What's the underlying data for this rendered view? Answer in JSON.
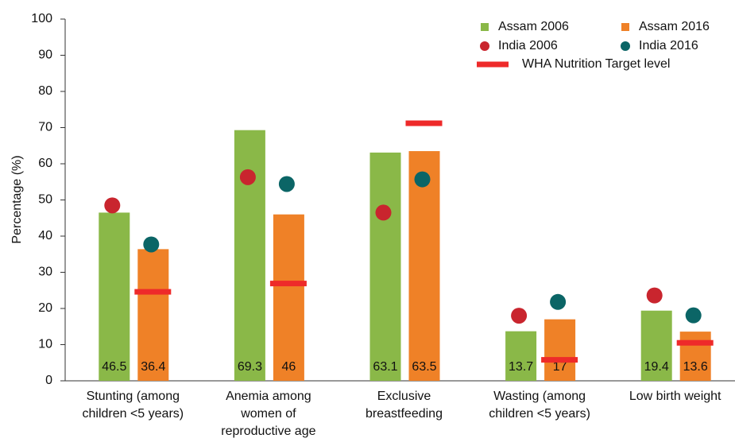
{
  "chart_data": {
    "type": "bar",
    "y_label": "Percentage (%)",
    "categories": [
      "Stunting (among children <5 years)",
      "Anemia among women of reproductive age",
      "Exclusive breastfeeding",
      "Wasting (among children <5 years)",
      "Low birth weight"
    ],
    "series": [
      {
        "name": "Assam 2006",
        "type": "bar",
        "color": "#8ab848",
        "values": [
          46.5,
          69.3,
          63.1,
          13.7,
          19.4
        ]
      },
      {
        "name": "Assam 2016",
        "type": "bar",
        "color": "#ef8127",
        "values": [
          36.4,
          46,
          63.5,
          17,
          13.6
        ]
      },
      {
        "name": "India 2006",
        "type": "dot",
        "color": "#c9252e",
        "values": [
          48.5,
          56.3,
          46.5,
          18,
          23.6
        ]
      },
      {
        "name": "India 2016",
        "type": "dot",
        "color": "#0b6566",
        "values": [
          37.7,
          54.4,
          55.7,
          21.8,
          18.1
        ]
      },
      {
        "name": "WHA Nutrition Target level",
        "type": "target",
        "color": "#ee2a2a",
        "values": [
          24.6,
          26.9,
          71.2,
          5.8,
          10.5
        ]
      }
    ],
    "ylim": [
      0,
      100
    ],
    "yticks": [
      0,
      10,
      20,
      30,
      40,
      50,
      60,
      70,
      80,
      90,
      100
    ],
    "legend": "top-right"
  }
}
